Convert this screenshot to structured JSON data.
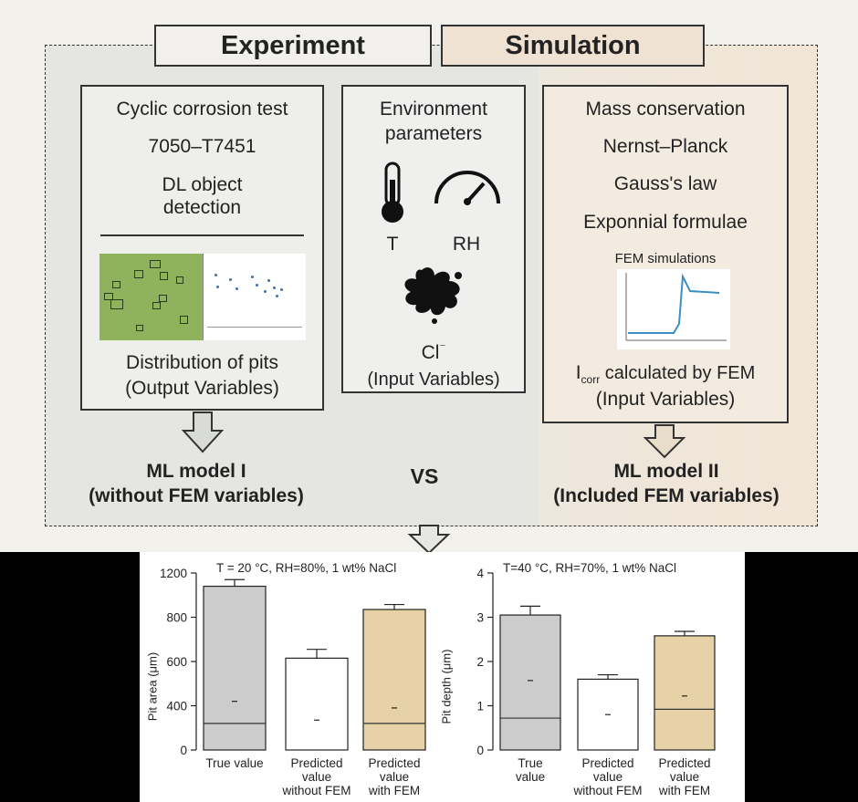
{
  "headers": {
    "experiment": "Experiment",
    "simulation": "Simulation"
  },
  "experiment": {
    "line1": "Cyclic corrosion test",
    "line2": "7050–T7451",
    "line3a": "DL object",
    "line3b": "detection",
    "output_title": "Distribution of pits",
    "output_sub": "(Output Variables)"
  },
  "environment": {
    "title_a": "Environment",
    "title_b": "parameters",
    "t_label": "T",
    "rh_label": "RH",
    "cl_label": "Cl",
    "cl_sup": "⁻",
    "input_label": "(Input Variables)",
    "icons": [
      "thermometer-icon",
      "gauge-icon",
      "splash-icon"
    ]
  },
  "simulation": {
    "line1": "Mass conservation",
    "line2": "Nernst–Planck",
    "line3": "Gauss's law",
    "line4": "Exponnial formulae",
    "fem_title": "FEM simulations",
    "icorr_main": "I",
    "icorr_sub": "corr",
    "icorr_rest": " calculated by FEM",
    "input_label": "(Input Variables)"
  },
  "models": {
    "ml1_title": "ML model I",
    "ml1_sub": "(without FEM variables)",
    "vs": "VS",
    "ml2_title": "ML model II",
    "ml2_sub": "(Included FEM variables)"
  },
  "chart_data": [
    {
      "type": "bar",
      "title": "T = 20 °C, RH=80%, 1 wt% NaCl",
      "ylabel": "Pit area (μm)",
      "ylim": [
        0,
        1200
      ],
      "yticks": [
        "0",
        "400",
        "600",
        "800",
        "1200"
      ],
      "categories": [
        "True value",
        "Predicted value without FEM",
        "Predicted value with FEM"
      ],
      "category_lines": [
        [
          "True value"
        ],
        [
          "Predicted",
          "value",
          "without FEM"
        ],
        [
          "Predicted",
          "value",
          "with FEM"
        ]
      ],
      "values": [
        1080,
        615,
        870
      ],
      "error_upper": [
        1140,
        655,
        915
      ],
      "median": [
        240,
        null,
        240
      ],
      "mean": [
        420,
        270,
        380
      ],
      "colors": [
        "#cccccc",
        "#ffffff",
        "#e6d2a6"
      ]
    },
    {
      "type": "bar",
      "title": "T=40 °C, RH=70%, 1 wt% NaCl",
      "ylabel": "Pit depth (μm)",
      "ylim": [
        0,
        4
      ],
      "yticks": [
        "0",
        "1",
        "2",
        "3",
        "4"
      ],
      "categories": [
        "True value",
        "Predicted value without FEM",
        "Predicted value with FEM"
      ],
      "category_lines": [
        [
          "True",
          "value"
        ],
        [
          "Predicted",
          "value",
          "without FEM"
        ],
        [
          "Predicted",
          "value",
          "with FEM"
        ]
      ],
      "values": [
        3.05,
        1.6,
        2.58
      ],
      "error_upper": [
        3.25,
        1.7,
        2.68
      ],
      "median": [
        0.72,
        null,
        0.92
      ],
      "mean": [
        1.57,
        0.8,
        1.22
      ],
      "colors": [
        "#cccccc",
        "#ffffff",
        "#e6d2a6"
      ]
    }
  ]
}
